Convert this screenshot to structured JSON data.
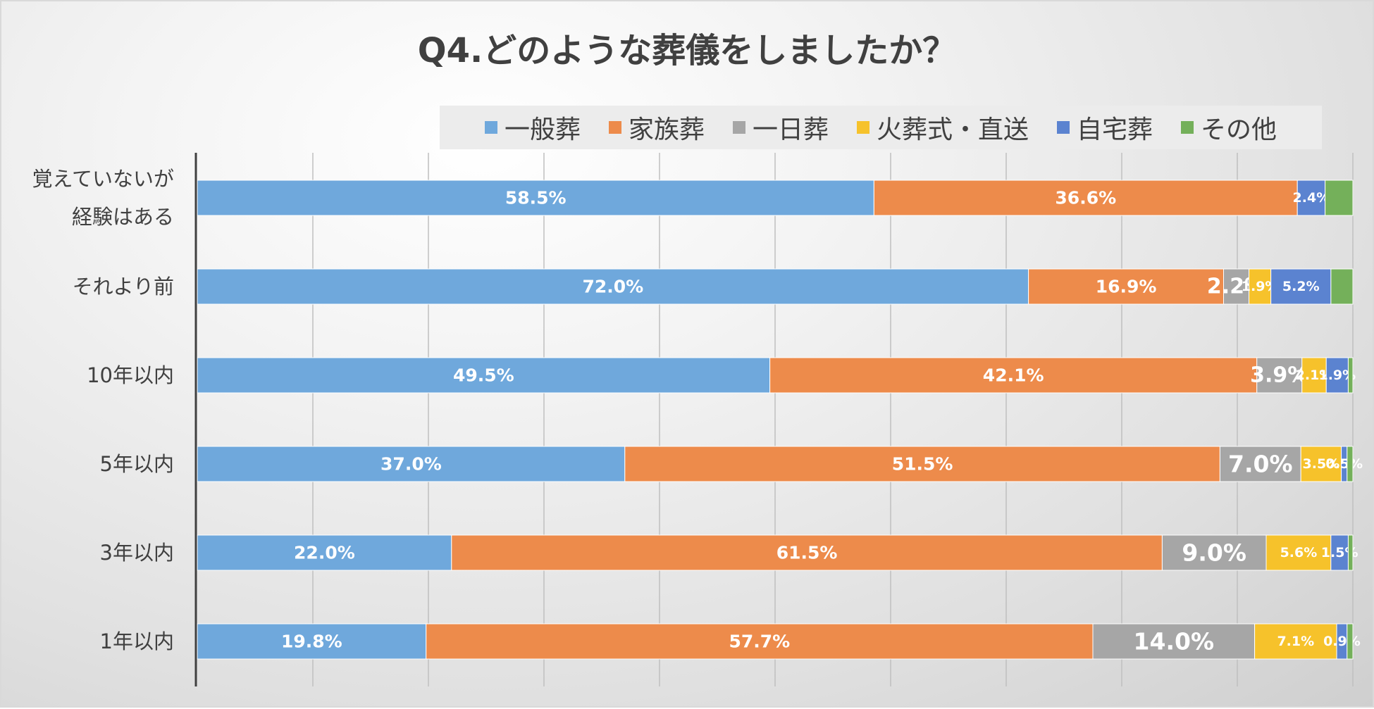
{
  "chart_data": {
    "type": "bar",
    "orientation": "horizontal",
    "stacked": "percent",
    "title": "Q4.どのような葬儀をしましたか？",
    "categories": [
      [
        "覚えていないが",
        "経験はある"
      ],
      [
        "それより前"
      ],
      [
        "10年以内"
      ],
      [
        "5年以内"
      ],
      [
        "3年以内"
      ],
      [
        "1年以内"
      ]
    ],
    "series": [
      {
        "name": "一般葬",
        "color": "#6fa8dc",
        "values": [
          58.5,
          72.0,
          49.5,
          37.0,
          22.0,
          19.8
        ]
      },
      {
        "name": "家族葬",
        "color": "#ed8b4b",
        "values": [
          36.6,
          16.9,
          42.1,
          51.5,
          61.5,
          57.7
        ]
      },
      {
        "name": "一日葬",
        "color": "#a6a6a6",
        "values": [
          0.0,
          2.2,
          3.9,
          7.0,
          9.0,
          14.0
        ]
      },
      {
        "name": "火葬式・直送",
        "color": "#f6c22b",
        "values": [
          0.0,
          1.9,
          2.1,
          3.5,
          5.6,
          7.1
        ]
      },
      {
        "name": "自宅葬",
        "color": "#5b83d0",
        "values": [
          2.4,
          5.2,
          1.9,
          0.5,
          1.5,
          0.9
        ]
      },
      {
        "name": "その他",
        "color": "#74b05a",
        "values": [
          2.4,
          1.9,
          0.4,
          0.5,
          0.4,
          0.5
        ]
      }
    ],
    "xlim": [
      0,
      100
    ],
    "grid": true,
    "legend": "top"
  }
}
